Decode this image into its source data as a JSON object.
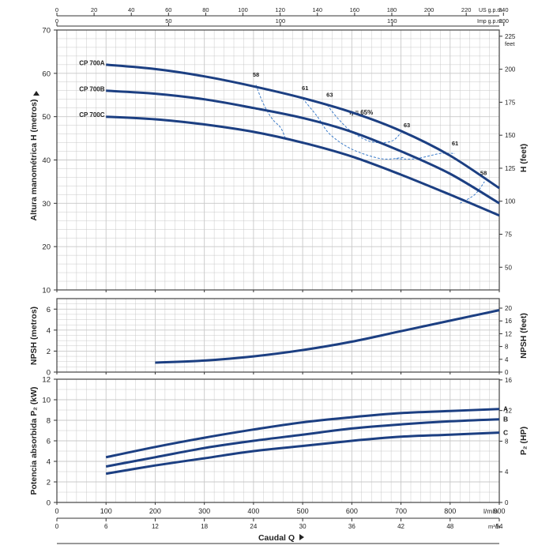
{
  "chart_data": [
    {
      "type": "line",
      "id": "head",
      "ylabel": "Altura manométrica H (metros)",
      "ylabel2": "H (feet)",
      "ylim": [
        10,
        70
      ],
      "y_ticks": [
        10,
        20,
        30,
        40,
        50,
        60,
        70
      ],
      "y2_unit": "feet",
      "y2_ticks": [
        50,
        75,
        100,
        125,
        150,
        175,
        200,
        225
      ],
      "xlim": [
        0,
        900
      ],
      "grid": true,
      "series": [
        {
          "name": "CP 700A",
          "x": [
            100,
            200,
            300,
            400,
            500,
            600,
            700,
            800,
            900
          ],
          "y": [
            62,
            61,
            59.3,
            57,
            54.3,
            51,
            46.7,
            41,
            33.5
          ]
        },
        {
          "name": "CP 700B",
          "x": [
            100,
            200,
            300,
            400,
            500,
            600,
            700,
            800,
            900
          ],
          "y": [
            56,
            55.3,
            54,
            52,
            49.7,
            46.5,
            42,
            36.8,
            30
          ]
        },
        {
          "name": "CP 700C",
          "x": [
            100,
            200,
            300,
            400,
            500,
            600,
            700,
            800,
            900
          ],
          "y": [
            50,
            49.4,
            48.2,
            46.5,
            44,
            40.8,
            36.6,
            32,
            27.2
          ]
        }
      ],
      "efficiency_label": "η = 65%",
      "efficiency_curves": [
        {
          "label": "58",
          "x": [
            405,
            420,
            438,
            455,
            465
          ],
          "y": [
            57.3,
            53,
            49.5,
            47.5,
            45
          ]
        },
        {
          "label": "61",
          "x": [
            500,
            530,
            555,
            600,
            660,
            705
          ],
          "y": [
            54.2,
            50,
            46,
            42.5,
            40.3,
            40.6
          ]
        },
        {
          "label": "63",
          "x": [
            550,
            570,
            600,
            640,
            680,
            700
          ],
          "y": [
            52.7,
            49.8,
            46.5,
            44.2,
            44.3,
            46.3
          ]
        },
        {
          "label": "63",
          "x": [
            690,
            700,
            710
          ],
          "y": [
            47,
            46.6,
            46.2
          ]
        },
        {
          "label": "61",
          "x": [
            690,
            730,
            780,
            810
          ],
          "y": [
            40.3,
            40.3,
            41.5,
            41.5
          ]
        },
        {
          "label": "58",
          "x": [
            820,
            850,
            870
          ],
          "y": [
            30,
            32,
            35
          ]
        }
      ],
      "annotations": [
        "58",
        "61",
        "63",
        "63",
        "61",
        "58"
      ]
    },
    {
      "type": "line",
      "id": "npsh",
      "ylabel": "NPSH (metros)",
      "ylabel2": "NPSH (feet)",
      "ylim": [
        0,
        7
      ],
      "y_ticks": [
        0,
        2,
        4,
        6
      ],
      "y2_ticks": [
        0,
        4,
        8,
        12,
        16,
        20
      ],
      "xlim": [
        0,
        900
      ],
      "grid": true,
      "series": [
        {
          "x": [
            200,
            300,
            400,
            500,
            600,
            700,
            800,
            900
          ],
          "y": [
            0.9,
            1.1,
            1.5,
            2.1,
            2.9,
            3.9,
            4.9,
            5.9
          ]
        }
      ]
    },
    {
      "type": "line",
      "id": "power",
      "ylabel": "Potencia absorbida P₂ (kW)",
      "ylabel2": "P₂ (HP)",
      "ylim": [
        0,
        12
      ],
      "y_ticks": [
        0,
        2,
        4,
        6,
        8,
        10,
        12
      ],
      "y2_ticks": [
        0,
        4,
        8,
        12,
        16
      ],
      "xlim": [
        0,
        900
      ],
      "grid": true,
      "series": [
        {
          "name": "A",
          "x": [
            100,
            200,
            300,
            400,
            500,
            600,
            700,
            800,
            900
          ],
          "y": [
            4.4,
            5.4,
            6.3,
            7.1,
            7.8,
            8.3,
            8.7,
            8.9,
            9.1
          ]
        },
        {
          "name": "B",
          "x": [
            100,
            200,
            300,
            400,
            500,
            600,
            700,
            800,
            900
          ],
          "y": [
            3.5,
            4.4,
            5.3,
            6,
            6.6,
            7.2,
            7.6,
            7.9,
            8.1
          ]
        },
        {
          "name": "C",
          "x": [
            100,
            200,
            300,
            400,
            500,
            600,
            700,
            800,
            900
          ],
          "y": [
            2.8,
            3.6,
            4.3,
            5,
            5.5,
            6,
            6.4,
            6.6,
            6.8
          ]
        }
      ]
    }
  ],
  "axes": {
    "x_lmin": {
      "unit": "l/min",
      "ticks": [
        0,
        100,
        200,
        300,
        400,
        500,
        600,
        700,
        800,
        900
      ]
    },
    "x_m3h": {
      "unit": "m³/h",
      "ticks": [
        0,
        6,
        12,
        18,
        24,
        30,
        36,
        42,
        48,
        54
      ]
    },
    "x_usgpm": {
      "unit": "US g.p.m.",
      "ticks": [
        0,
        20,
        40,
        60,
        80,
        100,
        120,
        140,
        160,
        180,
        200,
        220,
        240
      ]
    },
    "x_impgpm": {
      "unit": "Imp g.p.m.",
      "ticks": [
        0,
        50,
        100,
        150,
        200
      ]
    },
    "x_title": "Caudal Q"
  },
  "colors": {
    "curve": "#1c3f82",
    "efficiency": "#3d7cc9",
    "grid": "#c8c8c8",
    "frame": "#444444"
  }
}
